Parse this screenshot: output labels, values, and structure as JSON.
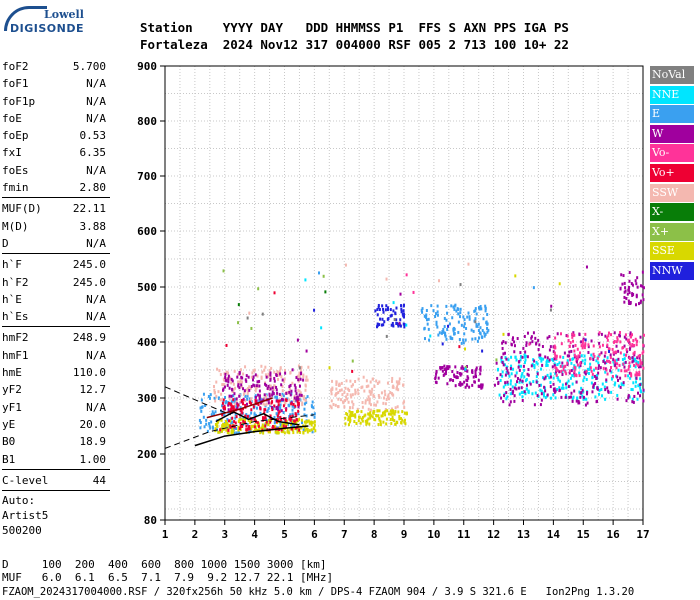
{
  "logo": {
    "top": "Lowell",
    "bottom": "DIGISONDE"
  },
  "header": {
    "labels": "Station    YYYY DAY   DDD HHMMSS P1  FFS S AXN PPS IGA PS",
    "values": "Fortaleza  2024 Nov12 317 004000 RSF 005 2 713 100 10+ 22"
  },
  "params_group1": [
    {
      "name": "foF2",
      "value": "5.700"
    },
    {
      "name": "foF1",
      "value": "N/A"
    },
    {
      "name": "foF1p",
      "value": "N/A"
    },
    {
      "name": "foE",
      "value": "N/A"
    },
    {
      "name": "foEp",
      "value": "0.53"
    },
    {
      "name": "fxI",
      "value": "6.35"
    },
    {
      "name": "foEs",
      "value": "N/A"
    },
    {
      "name": "fmin",
      "value": "2.80"
    }
  ],
  "params_group2": [
    {
      "name": "MUF(D)",
      "value": "22.11"
    },
    {
      "name": "M(D)",
      "value": "3.88"
    },
    {
      "name": "D",
      "value": "N/A"
    }
  ],
  "params_group3": [
    {
      "name": "h`F",
      "value": "245.0"
    },
    {
      "name": "h`F2",
      "value": "245.0"
    },
    {
      "name": "h`E",
      "value": "N/A"
    },
    {
      "name": "h`Es",
      "value": "N/A"
    }
  ],
  "params_group4": [
    {
      "name": "hmF2",
      "value": "248.9"
    },
    {
      "name": "hmF1",
      "value": "N/A"
    },
    {
      "name": "hmE",
      "value": "110.0"
    },
    {
      "name": "yF2",
      "value": "12.7"
    },
    {
      "name": "yF1",
      "value": "N/A"
    },
    {
      "name": "yE",
      "value": "20.0"
    },
    {
      "name": "B0",
      "value": "18.9"
    },
    {
      "name": "B1",
      "value": "1.00"
    }
  ],
  "params_group5": [
    {
      "name": "C-level",
      "value": "44"
    }
  ],
  "auto": {
    "line1": "Auto:",
    "line2": "Artist5",
    "line3": "500200"
  },
  "legend": [
    {
      "label": "NoVal",
      "color": "#808080"
    },
    {
      "label": "NNE",
      "color": "#00e5ff"
    },
    {
      "label": "E",
      "color": "#3aa0f0"
    },
    {
      "label": "W",
      "color": "#a0009e"
    },
    {
      "label": "Vo-",
      "color": "#ff3399"
    },
    {
      "label": "Vo+",
      "color": "#ee0033"
    },
    {
      "label": "SSW",
      "color": "#f4b8b0"
    },
    {
      "label": "X-",
      "color": "#087d08"
    },
    {
      "label": "X+",
      "color": "#8cc048"
    },
    {
      "label": "SSE",
      "color": "#d8d800"
    },
    {
      "label": "NNW",
      "color": "#2020dd"
    }
  ],
  "bottom": {
    "d_row": "D     100  200  400  600  800 1000 1500 3000 [km]",
    "muf_row": "MUF   6.0  6.1  6.5  7.1  7.9  9.2 12.7 22.1 [MHz]",
    "footer": "FZAOM_2024317004000.RSF / 320fx256h 50 kHz 5.0 km / DPS-4 FZAOM 904 / 3.9 S 321.6 E   Ion2Png 1.3.20"
  },
  "chart_data": {
    "type": "scatter",
    "xlim": [
      1,
      17
    ],
    "ylim": [
      80,
      900
    ],
    "xticks": [
      "1",
      "2",
      "3",
      "4",
      "5",
      "6",
      "7",
      "8",
      "9",
      "10",
      "11",
      "12",
      "13",
      "14",
      "15",
      "16",
      "17"
    ],
    "yticks": [
      "80",
      "200",
      "300",
      "400",
      "500",
      "600",
      "700",
      "800",
      "900"
    ],
    "grid": true,
    "clusters": [
      {
        "mode": "E",
        "x": [
          2.1,
          6.0
        ],
        "y": [
          240,
          310
        ]
      },
      {
        "mode": "SSW",
        "x": [
          2.6,
          5.8
        ],
        "y": [
          290,
          360
        ]
      },
      {
        "mode": "W",
        "x": [
          2.9,
          5.6
        ],
        "y": [
          280,
          350
        ]
      },
      {
        "mode": "SSE",
        "x": [
          2.6,
          6.0
        ],
        "y": [
          240,
          265
        ]
      },
      {
        "mode": "Vo+",
        "x": [
          2.8,
          5.5
        ],
        "y": [
          245,
          300
        ]
      },
      {
        "mode": "SSW",
        "x": [
          6.5,
          9.0
        ],
        "y": [
          280,
          340
        ]
      },
      {
        "mode": "SSE",
        "x": [
          7.0,
          9.1
        ],
        "y": [
          255,
          280
        ]
      },
      {
        "mode": "NNW",
        "x": [
          8.0,
          9.0
        ],
        "y": [
          430,
          470
        ]
      },
      {
        "mode": "E",
        "x": [
          9.5,
          11.8
        ],
        "y": [
          400,
          470
        ]
      },
      {
        "mode": "W",
        "x": [
          10.0,
          11.6
        ],
        "y": [
          320,
          360
        ]
      },
      {
        "mode": "NNE",
        "x": [
          12.1,
          17.0
        ],
        "y": [
          300,
          380
        ]
      },
      {
        "mode": "W",
        "x": [
          12.0,
          17.0
        ],
        "y": [
          290,
          420
        ]
      },
      {
        "mode": "Vo-",
        "x": [
          14.0,
          17.0
        ],
        "y": [
          340,
          420
        ]
      },
      {
        "mode": "W",
        "x": [
          16.2,
          17.0
        ],
        "y": [
          470,
          530
        ]
      }
    ]
  }
}
